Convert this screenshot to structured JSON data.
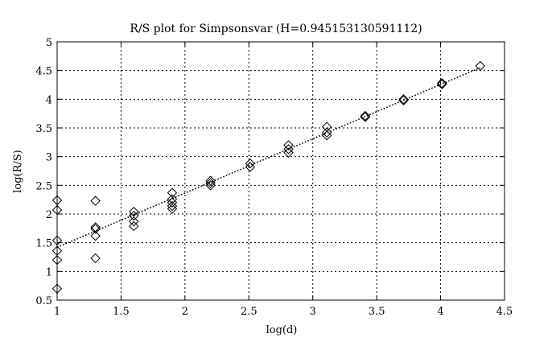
{
  "chart_data": {
    "type": "scatter",
    "title": "R/S plot for Simpsonsvar (H=0.945153130591112)",
    "xlabel": "log(d)",
    "ylabel": "log(R/S)",
    "xlim": [
      1,
      4.5
    ],
    "ylim": [
      0.5,
      5
    ],
    "xticks": [
      1,
      1.5,
      2,
      2.5,
      3,
      3.5,
      4,
      4.5
    ],
    "yticks": [
      0.5,
      1,
      1.5,
      2,
      2.5,
      3,
      3.5,
      4,
      4.5,
      5
    ],
    "xtick_labels": [
      "1",
      "1.5",
      "2",
      "2.5",
      "3",
      "3.5",
      "4",
      "4.5"
    ],
    "ytick_labels": [
      "0.5",
      "1",
      "1.5",
      "2",
      "2.5",
      "3",
      "3.5",
      "4",
      "4.5",
      "5"
    ],
    "grid": true,
    "marker": "diamond",
    "points": [
      [
        1.0,
        2.24
      ],
      [
        1.0,
        2.07
      ],
      [
        1.0,
        1.54
      ],
      [
        1.0,
        1.36
      ],
      [
        1.0,
        1.2
      ],
      [
        1.0,
        0.7
      ],
      [
        1.3,
        2.23
      ],
      [
        1.3,
        1.77
      ],
      [
        1.3,
        1.74
      ],
      [
        1.3,
        1.62
      ],
      [
        1.3,
        1.23
      ],
      [
        1.6,
        2.04
      ],
      [
        1.6,
        1.97
      ],
      [
        1.6,
        1.87
      ],
      [
        1.6,
        1.79
      ],
      [
        1.9,
        2.37
      ],
      [
        1.9,
        2.26
      ],
      [
        1.9,
        2.2
      ],
      [
        1.9,
        2.14
      ],
      [
        1.9,
        2.09
      ],
      [
        2.2,
        2.58
      ],
      [
        2.2,
        2.54
      ],
      [
        2.2,
        2.5
      ],
      [
        2.51,
        2.88
      ],
      [
        2.51,
        2.82
      ],
      [
        2.81,
        3.2
      ],
      [
        2.81,
        3.13
      ],
      [
        2.81,
        3.07
      ],
      [
        3.11,
        3.52
      ],
      [
        3.11,
        3.42
      ],
      [
        3.11,
        3.37
      ],
      [
        3.41,
        3.71
      ],
      [
        3.41,
        3.69
      ],
      [
        3.71,
        4.0
      ],
      [
        3.71,
        3.98
      ],
      [
        4.01,
        4.28
      ],
      [
        4.01,
        4.26
      ],
      [
        4.31,
        4.58
      ]
    ],
    "fit_line": {
      "x": [
        1.0,
        4.31
      ],
      "y": [
        1.42,
        4.55
      ]
    }
  }
}
